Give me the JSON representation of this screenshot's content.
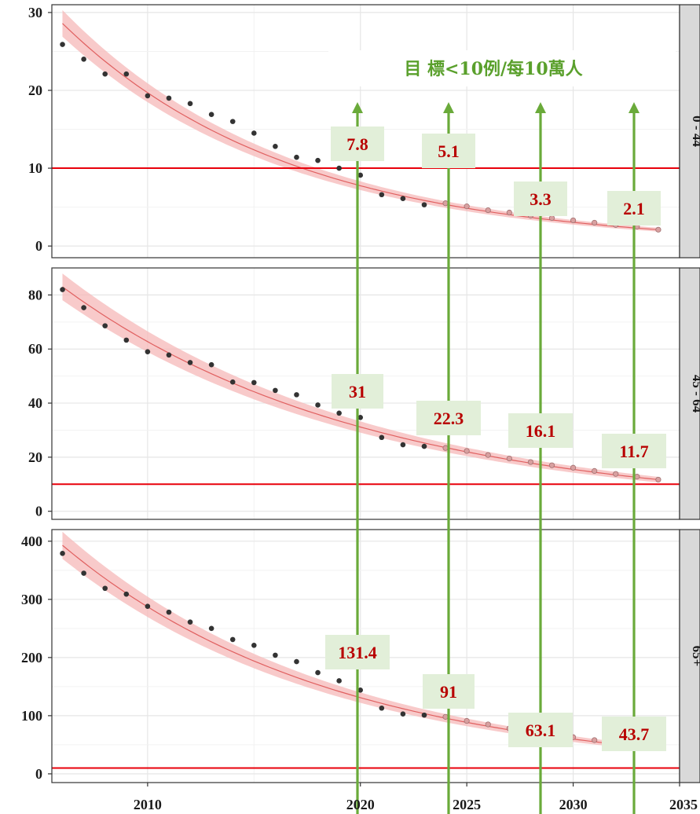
{
  "chart_data": {
    "type": "scatter",
    "xlabel": "",
    "ylabel": "",
    "xlim": [
      2005.5,
      2035
    ],
    "x_ticks": [
      2010,
      2020,
      2025,
      2030,
      2035
    ],
    "goal_label": "目 標<10例/每10萬人",
    "goal_threshold": 10,
    "projection_years": [
      2020,
      2025,
      2030,
      2035
    ],
    "colors": {
      "observed": "#333333",
      "projected": "#d9a0a0",
      "fit": "#e06060",
      "band": "#f6b8b8",
      "threshold": "#e8000b",
      "arrow": "#6aaa3a",
      "label_bg": "#e2efd9",
      "label_text": "#b80000",
      "strip_bg": "#d9d9d9"
    },
    "panels": [
      {
        "strip": "0 - 44",
        "ylim": [
          -1.5,
          31
        ],
        "y_ticks": [
          0,
          10,
          20,
          30
        ],
        "observed": {
          "x": [
            2006,
            2007,
            2008,
            2009,
            2010,
            2011,
            2012,
            2013,
            2014,
            2015,
            2016,
            2017,
            2018,
            2019,
            2020,
            2021,
            2022,
            2023
          ],
          "y": [
            25.9,
            24.0,
            22.1,
            22.1,
            19.3,
            19.0,
            18.3,
            16.9,
            16.0,
            14.5,
            12.8,
            11.4,
            11.0,
            10.0,
            9.1,
            6.6,
            6.1,
            5.3
          ]
        },
        "projected": {
          "x": [
            2024,
            2025,
            2026,
            2027,
            2028,
            2029,
            2030,
            2031,
            2032,
            2033,
            2034
          ],
          "y": [
            5.5,
            5.1,
            4.6,
            4.3,
            3.9,
            3.6,
            3.3,
            3.0,
            2.7,
            2.5,
            2.1
          ]
        },
        "fit": {
          "start": 28.6,
          "end": 2.1,
          "x0": 2006,
          "x1": 2034
        },
        "annotations": [
          {
            "year": 2020,
            "label": "7.8",
            "label_y": 17.4
          },
          {
            "year": 2025,
            "label": "5.1",
            "label_y": 16.5
          },
          {
            "year": 2030,
            "label": "3.3",
            "label_y": 7.0
          },
          {
            "year": 2035,
            "label": "2.1",
            "label_y": 5.2
          }
        ]
      },
      {
        "strip": "45 - 64",
        "ylim": [
          -3,
          90
        ],
        "y_ticks": [
          0,
          20,
          40,
          60,
          80
        ],
        "observed": {
          "x": [
            2006,
            2007,
            2008,
            2009,
            2010,
            2011,
            2012,
            2013,
            2014,
            2015,
            2016,
            2017,
            2018,
            2019,
            2020,
            2021,
            2022,
            2023
          ],
          "y": [
            82.0,
            75.3,
            68.6,
            63.3,
            59.0,
            57.8,
            55.0,
            54.2,
            47.8,
            47.6,
            44.7,
            43.1,
            39.3,
            36.3,
            34.7,
            27.3,
            24.6,
            24.0
          ]
        },
        "projected": {
          "x": [
            2024,
            2025,
            2026,
            2027,
            2028,
            2029,
            2030,
            2031,
            2032,
            2033,
            2034
          ],
          "y": [
            23.4,
            22.3,
            20.8,
            19.5,
            18.2,
            17.0,
            16.1,
            14.9,
            13.8,
            12.8,
            11.7
          ]
        },
        "fit": {
          "start": 83.0,
          "end": 11.7,
          "x0": 2006,
          "x1": 2034
        },
        "annotations": [
          {
            "year": 2020,
            "label": "31",
            "label_y": 40.7
          },
          {
            "year": 2025,
            "label": "22.3",
            "label_y": 30.2
          },
          {
            "year": 2030,
            "label": "16.1",
            "label_y": 26.3
          },
          {
            "year": 2035,
            "label": "11.7",
            "label_y": 18.3
          }
        ]
      },
      {
        "strip": "65+",
        "ylim": [
          -15,
          420
        ],
        "y_ticks": [
          0,
          100,
          200,
          300,
          400
        ],
        "observed": {
          "x": [
            2006,
            2007,
            2008,
            2009,
            2010,
            2011,
            2012,
            2013,
            2014,
            2015,
            2016,
            2017,
            2018,
            2019,
            2020,
            2021,
            2022,
            2023
          ],
          "y": [
            379,
            345,
            319,
            309,
            288,
            278,
            261,
            250,
            231,
            221,
            204,
            193,
            174,
            160,
            144,
            113,
            103,
            101
          ]
        },
        "projected": {
          "x": [
            2024,
            2025,
            2026,
            2027,
            2028,
            2029,
            2030,
            2031,
            2032,
            2033,
            2034
          ],
          "y": [
            98,
            91,
            85,
            78,
            73,
            68,
            63,
            58,
            54,
            49,
            44
          ]
        },
        "fit": {
          "start": 393,
          "end": 43.7,
          "x0": 2006,
          "x1": 2034
        },
        "annotations": [
          {
            "year": 2020,
            "label": "131.4",
            "label_y": 210
          },
          {
            "year": 2025,
            "label": "91",
            "label_y": 140
          },
          {
            "year": 2030,
            "label": "63.1",
            "label_y": 97
          },
          {
            "year": 2035,
            "label": "43.7",
            "label_y": 91
          }
        ]
      }
    ]
  }
}
